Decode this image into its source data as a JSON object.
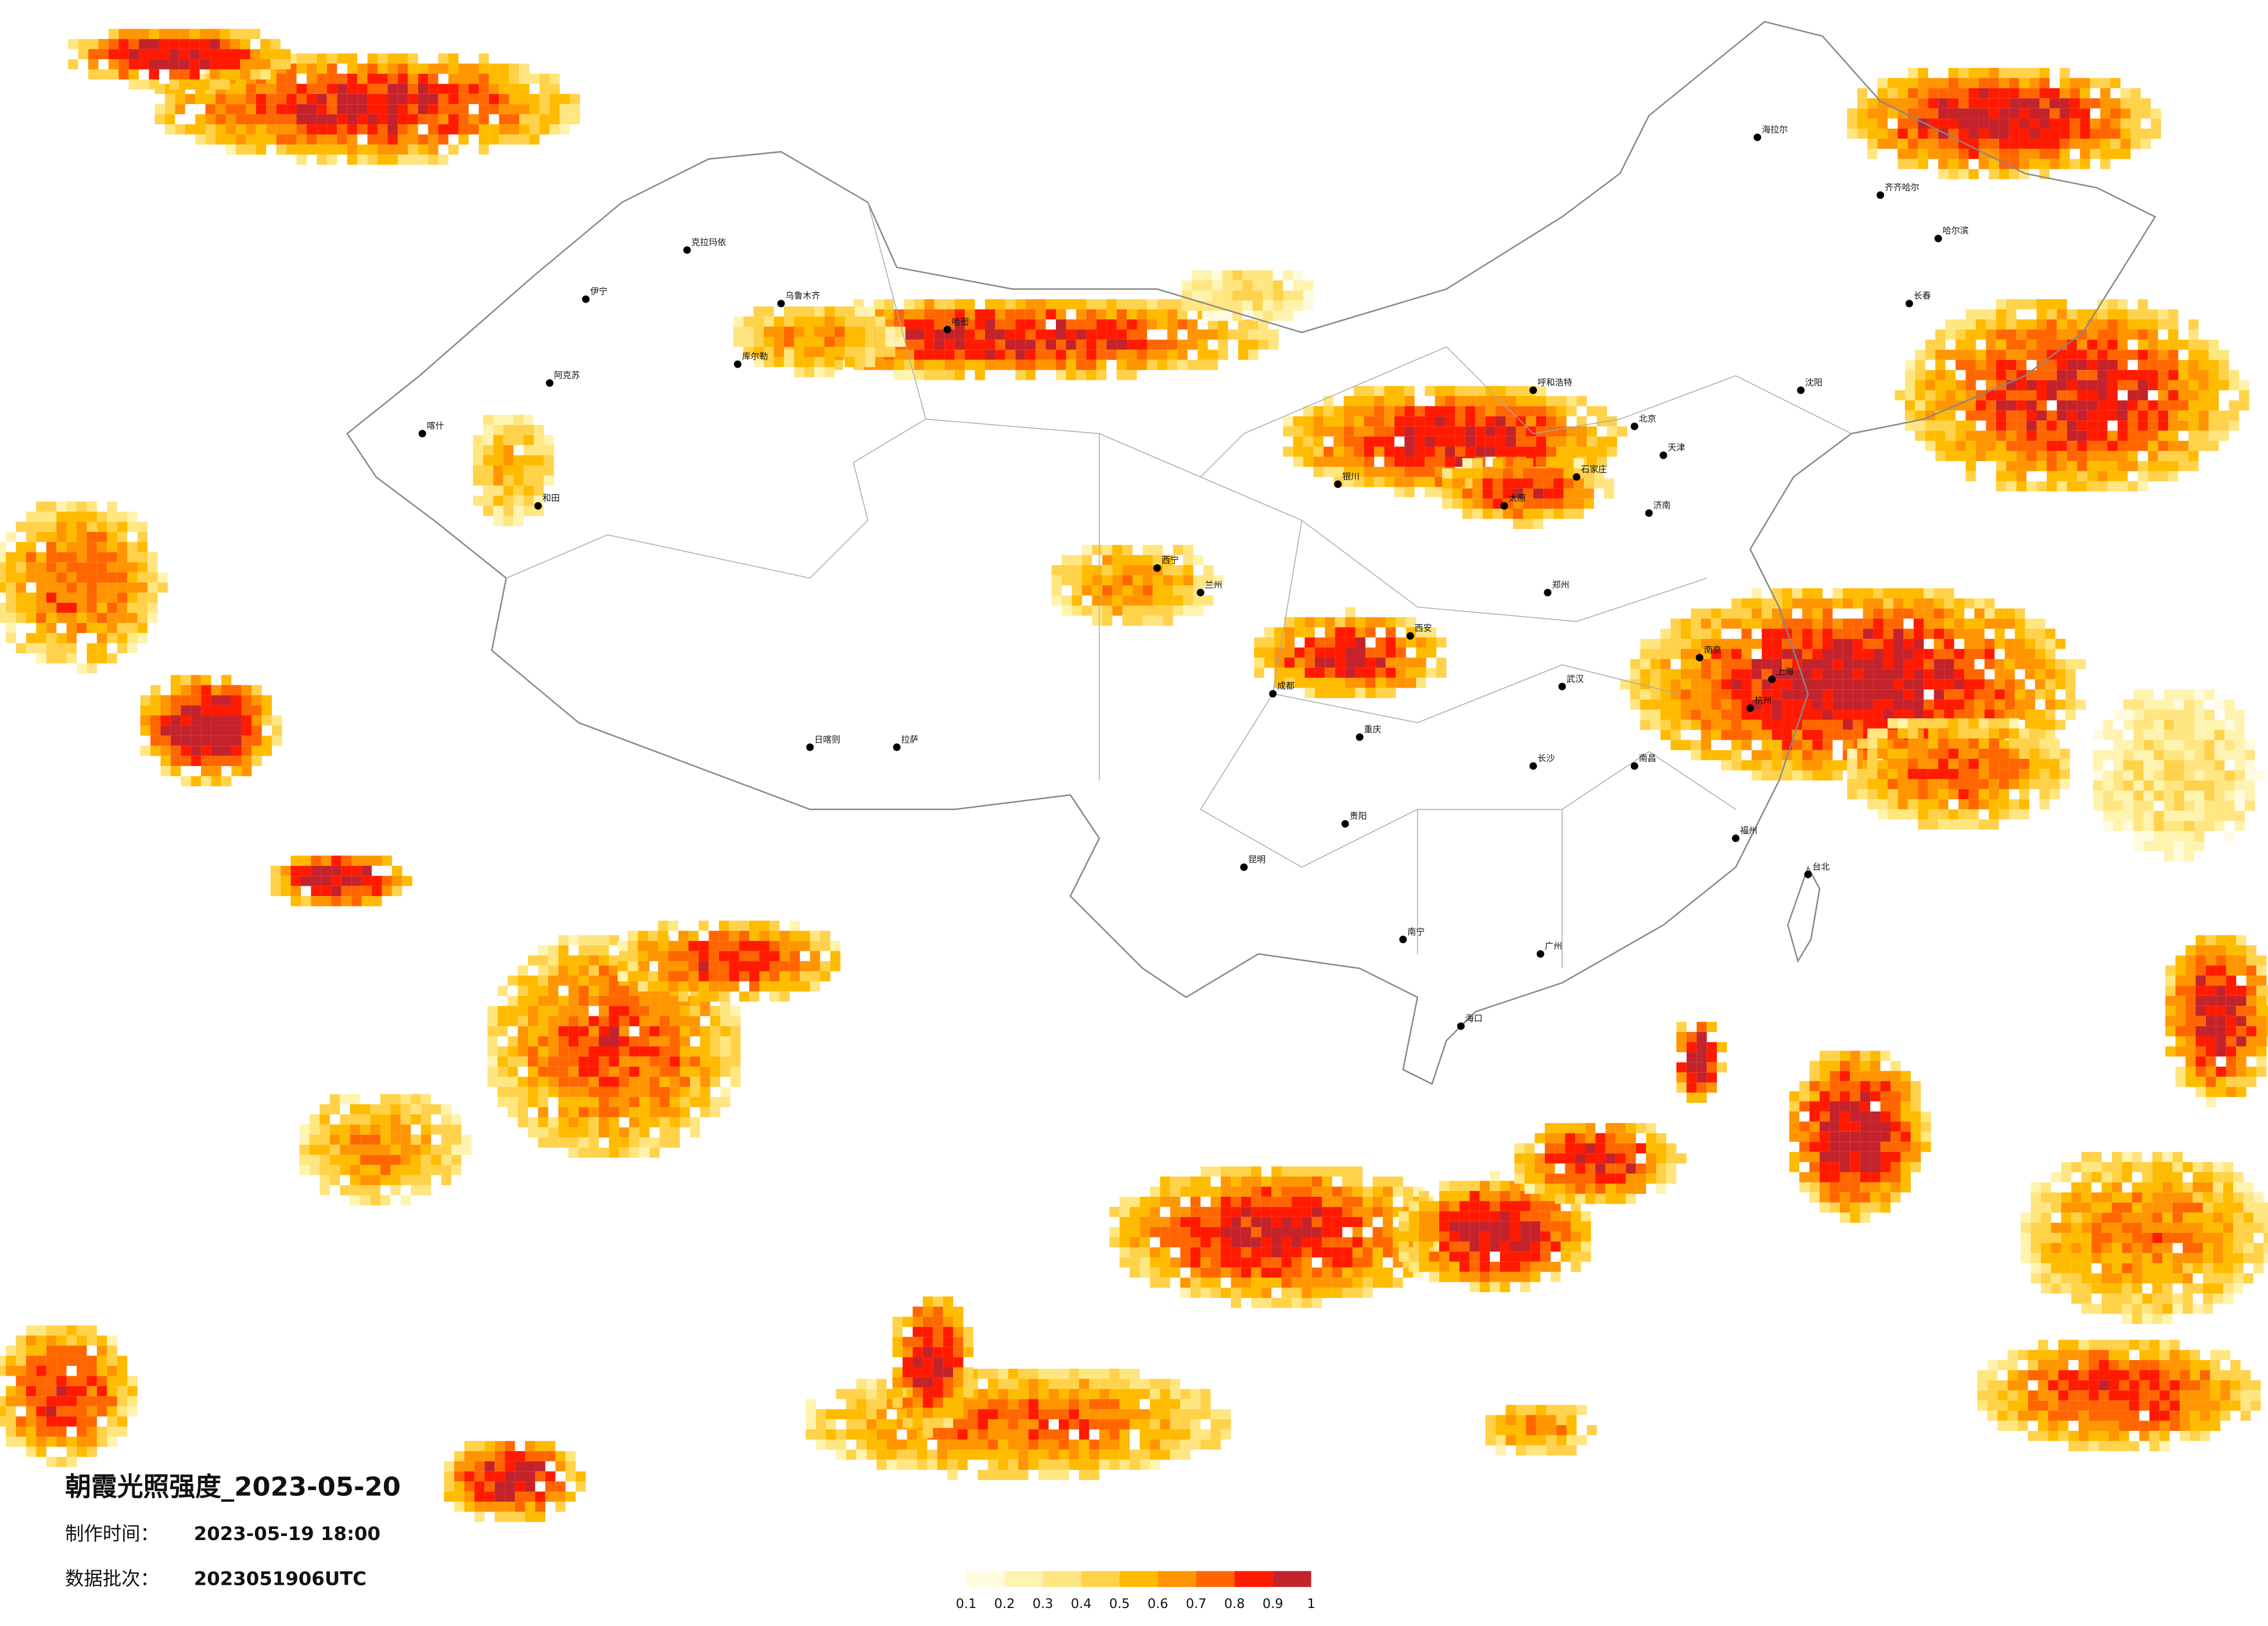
{
  "header": {
    "title": "朝霞光照强度_2023-05-20",
    "production_label": "制作时间：",
    "production_time": "2023-05-19 18:00",
    "batch_label": "数据批次：",
    "batch": "2023051906UTC"
  },
  "legend": {
    "colors": [
      "#fffbe0",
      "#fff3b0",
      "#ffe680",
      "#ffd24a",
      "#ffbb00",
      "#ff9500",
      "#ff6600",
      "#ff1a00",
      "#c4232b"
    ],
    "ticks": [
      0.1,
      0.2,
      0.3,
      0.4,
      0.5,
      0.6,
      0.7,
      0.8,
      0.9,
      1
    ]
  },
  "cities": [
    "乌鲁木齐",
    "克拉玛依",
    "伊宁",
    "喀什",
    "阿克苏",
    "和田",
    "库尔勒",
    "哈密",
    "拉萨",
    "日喀则",
    "西宁",
    "兰州",
    "北京",
    "天津",
    "上海",
    "广州",
    "成都",
    "重庆",
    "武汉",
    "西安",
    "郑州",
    "昆明",
    "贵阳",
    "南宁",
    "海口",
    "长沙",
    "南昌",
    "福州",
    "杭州",
    "南京",
    "济南",
    "太原",
    "石家庄",
    "呼和浩特",
    "沈阳",
    "长春",
    "哈尔滨",
    "银川",
    "台北",
    "海拉尔",
    "齐齐哈尔"
  ]
}
